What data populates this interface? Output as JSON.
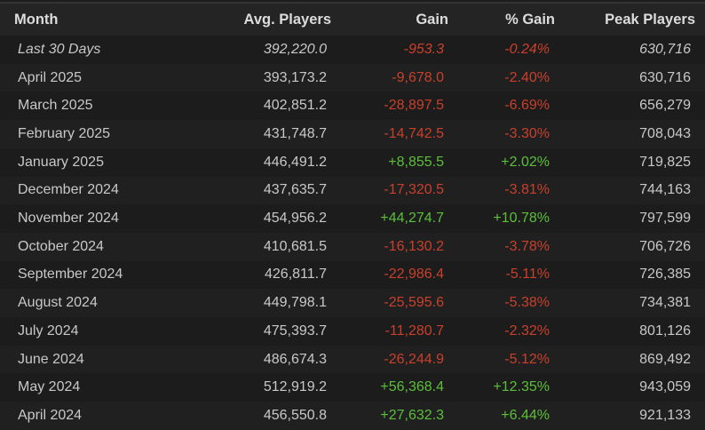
{
  "table": {
    "header": [
      "Month",
      "Avg. Players",
      "Gain",
      "% Gain",
      "Peak Players"
    ],
    "rows": [
      [
        "Last 30 Days",
        "392,220.0",
        "-953.3",
        "-0.24%",
        "630,716"
      ],
      [
        "April 2025",
        "393,173.2",
        "-9,678.0",
        "-2.40%",
        "630,716"
      ],
      [
        "March 2025",
        "402,851.2",
        "-28,897.5",
        "-6.69%",
        "656,279"
      ],
      [
        "February 2025",
        "431,748.7",
        "-14,742.5",
        "-3.30%",
        "708,043"
      ],
      [
        "January 2025",
        "446,491.2",
        "+8,855.5",
        "+2.02%",
        "719,825"
      ],
      [
        "December 2024",
        "437,635.7",
        "-17,320.5",
        "-3.81%",
        "744,163"
      ],
      [
        "November 2024",
        "454,956.2",
        "+44,274.7",
        "+10.78%",
        "797,599"
      ],
      [
        "October 2024",
        "410,681.5",
        "-16,130.2",
        "-3.78%",
        "706,726"
      ],
      [
        "September 2024",
        "426,811.7",
        "-22,986.4",
        "-5.11%",
        "726,385"
      ],
      [
        "August 2024",
        "449,798.1",
        "-25,595.6",
        "-5.38%",
        "734,381"
      ],
      [
        "July 2024",
        "475,393.7",
        "-11,280.7",
        "-2.32%",
        "801,126"
      ],
      [
        "June 2024",
        "486,674.3",
        "-26,244.9",
        "-5.12%",
        "869,492"
      ],
      [
        "May 2024",
        "512,919.2",
        "+56,368.4",
        "+12.35%",
        "943,059"
      ],
      [
        "April 2024",
        "456,550.8",
        "+27,632.3",
        "+6.44%",
        "921,133"
      ]
    ],
    "gain_colors": [
      "#c8402c",
      "#c8402c",
      "#c8402c",
      "#c8402c",
      "#5cbf3a",
      "#c8402c",
      "#5cbf3a",
      "#c8402c",
      "#c8402c",
      "#c8402c",
      "#c8402c",
      "#c8402c",
      "#5cbf3a",
      "#5cbf3a"
    ]
  }
}
